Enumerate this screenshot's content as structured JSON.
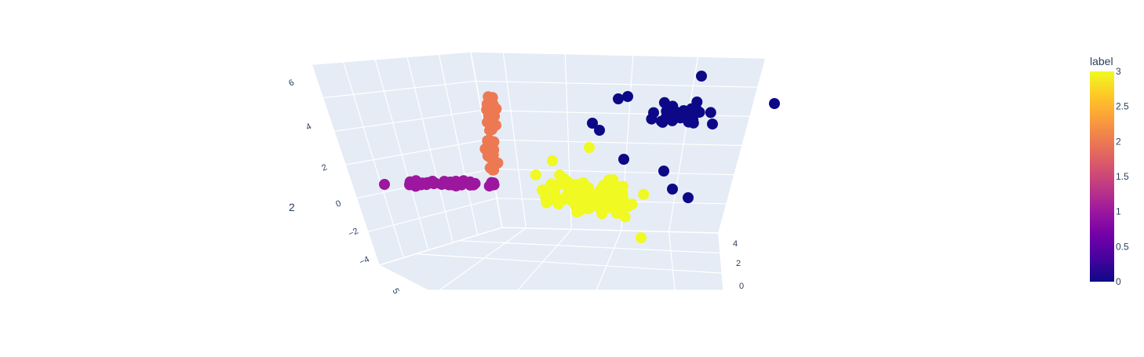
{
  "chart_data": {
    "type": "scatter3d",
    "axes": {
      "x": {
        "title": "",
        "tick_labels": [
          "4",
          "2",
          "0"
        ],
        "ticks": [
          4,
          2,
          0
        ]
      },
      "y": {
        "title": "",
        "tick_labels": [
          "5"
        ],
        "ticks": [
          5
        ]
      },
      "z": {
        "title": "",
        "tick_labels": [
          "6",
          "4",
          "2",
          "0",
          "−2",
          "−4"
        ],
        "ticks": [
          6,
          4,
          2,
          0,
          -2,
          -4
        ]
      },
      "extra_label": "2"
    },
    "colorbar": {
      "title": "label",
      "range": [
        0,
        3
      ],
      "ticks": [
        "3",
        "2.5",
        "2",
        "1.5",
        "1",
        "0.5",
        "0"
      ],
      "colorscale": [
        "#0d0887",
        "#46039f",
        "#7201a8",
        "#9c179e",
        "#bd3786",
        "#d8576b",
        "#ed7953",
        "#fb9f3a",
        "#fdca26",
        "#f0f921"
      ]
    },
    "series": [
      {
        "label": 0,
        "color": "#0d0887",
        "count": 45
      },
      {
        "label": 1,
        "color": "#9c179e",
        "count": 48
      },
      {
        "label": 2,
        "color": "#ed7953",
        "count": 40
      },
      {
        "label": 3,
        "color": "#f0f921",
        "count": 150
      }
    ],
    "grid": true
  }
}
